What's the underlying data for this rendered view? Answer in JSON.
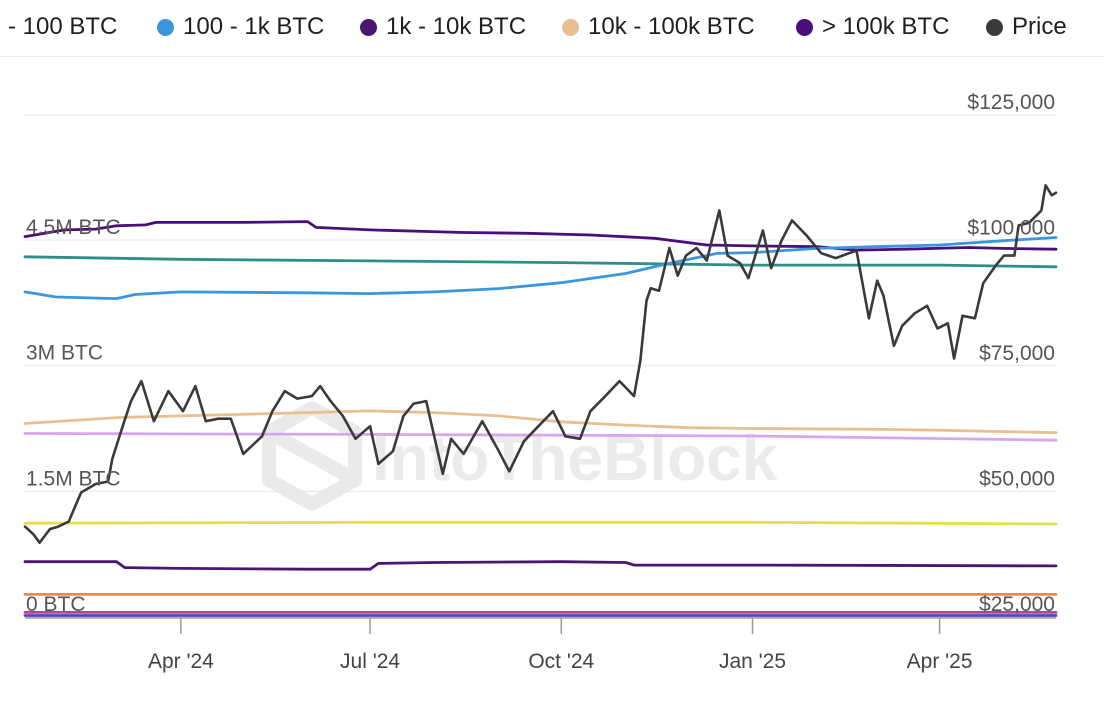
{
  "legend": {
    "items": [
      {
        "label": "- 100 BTC",
        "color": ""
      },
      {
        "label": "100 - 1k BTC",
        "color": "#3a96dd"
      },
      {
        "label": "1k - 10k BTC",
        "color": "#4a1670"
      },
      {
        "label": "10k - 100k BTC",
        "color": "#e8bf92"
      },
      {
        "label": "> 100k BTC",
        "color": "#4a0f78"
      },
      {
        "label": "Price",
        "color": "#3a3a3a"
      }
    ]
  },
  "watermark": "IntoTheBlock",
  "chart_data": {
    "type": "line",
    "x_range": [
      "2024-01-17",
      "2025-05-27"
    ],
    "x_ticks": [
      {
        "date": "2024-04-01",
        "label": "Apr '24"
      },
      {
        "date": "2024-07-01",
        "label": "Jul '24"
      },
      {
        "date": "2024-10-01",
        "label": "Oct '24"
      },
      {
        "date": "2025-01-01",
        "label": "Jan '25"
      },
      {
        "date": "2025-04-01",
        "label": "Apr '25"
      }
    ],
    "y_left": {
      "range": [
        0,
        5000000
      ],
      "ticks": [
        0,
        1500000,
        3000000,
        4500000
      ],
      "tick_labels": [
        "0 BTC",
        "1.5M BTC",
        "3M BTC",
        "4.5M BTC"
      ]
    },
    "y_right": {
      "range": [
        25000,
        125000
      ],
      "ticks": [
        25000,
        50000,
        75000,
        100000,
        125000
      ],
      "tick_labels": [
        "$25,000",
        "$50,000",
        "$75,000",
        "$100,000",
        "$125,000"
      ]
    },
    "grid": true,
    "legend_position": "top",
    "series": [
      {
        "name": "> 100k BTC",
        "axis": "left",
        "color": "#4a0f78",
        "points": [
          [
            "2024-01-17",
            4540000
          ],
          [
            "2024-02-05",
            4620000
          ],
          [
            "2024-02-20",
            4630000
          ],
          [
            "2024-03-01",
            4670000
          ],
          [
            "2024-03-15",
            4680000
          ],
          [
            "2024-03-20",
            4710000
          ],
          [
            "2024-05-01",
            4710000
          ],
          [
            "2024-06-01",
            4720000
          ],
          [
            "2024-06-05",
            4650000
          ],
          [
            "2024-07-01",
            4620000
          ],
          [
            "2024-08-15",
            4590000
          ],
          [
            "2024-09-15",
            4580000
          ],
          [
            "2024-10-15",
            4560000
          ],
          [
            "2024-11-15",
            4520000
          ],
          [
            "2024-12-10",
            4440000
          ],
          [
            "2025-01-01",
            4430000
          ],
          [
            "2025-02-01",
            4420000
          ],
          [
            "2025-02-20",
            4380000
          ],
          [
            "2025-03-15",
            4390000
          ],
          [
            "2025-04-15",
            4410000
          ],
          [
            "2025-05-01",
            4400000
          ],
          [
            "2025-05-27",
            4390000
          ]
        ]
      },
      {
        "name": "",
        "axis": "left",
        "color": "#2f8e8a",
        "points": [
          [
            "2024-01-17",
            4300000
          ],
          [
            "2024-04-01",
            4270000
          ],
          [
            "2024-07-01",
            4250000
          ],
          [
            "2024-10-01",
            4230000
          ],
          [
            "2025-01-01",
            4200000
          ],
          [
            "2025-04-01",
            4200000
          ],
          [
            "2025-05-27",
            4180000
          ]
        ]
      },
      {
        "name": "100 - 1k BTC",
        "axis": "left",
        "color": "#3a96dd",
        "points": [
          [
            "2024-01-17",
            3880000
          ],
          [
            "2024-02-01",
            3820000
          ],
          [
            "2024-03-01",
            3800000
          ],
          [
            "2024-03-10",
            3850000
          ],
          [
            "2024-04-01",
            3880000
          ],
          [
            "2024-06-01",
            3870000
          ],
          [
            "2024-07-01",
            3860000
          ],
          [
            "2024-08-01",
            3880000
          ],
          [
            "2024-09-01",
            3920000
          ],
          [
            "2024-10-01",
            3990000
          ],
          [
            "2024-10-15",
            4040000
          ],
          [
            "2024-11-01",
            4100000
          ],
          [
            "2024-11-20",
            4210000
          ],
          [
            "2024-12-15",
            4340000
          ],
          [
            "2025-01-01",
            4350000
          ],
          [
            "2025-02-01",
            4400000
          ],
          [
            "2025-03-01",
            4420000
          ],
          [
            "2025-04-01",
            4440000
          ],
          [
            "2025-05-01",
            4490000
          ],
          [
            "2025-05-27",
            4530000
          ]
        ]
      },
      {
        "name": "10k - 100k BTC",
        "axis": "left",
        "color": "#e8bf92",
        "points": [
          [
            "2024-01-17",
            2310000
          ],
          [
            "2024-03-01",
            2380000
          ],
          [
            "2024-04-01",
            2400000
          ],
          [
            "2024-06-01",
            2440000
          ],
          [
            "2024-07-01",
            2460000
          ],
          [
            "2024-08-01",
            2440000
          ],
          [
            "2024-09-01",
            2400000
          ],
          [
            "2024-10-01",
            2330000
          ],
          [
            "2024-11-01",
            2290000
          ],
          [
            "2024-12-01",
            2260000
          ],
          [
            "2025-01-01",
            2250000
          ],
          [
            "2025-03-01",
            2240000
          ],
          [
            "2025-04-01",
            2230000
          ],
          [
            "2025-05-27",
            2200000
          ]
        ]
      },
      {
        "name": "",
        "axis": "left",
        "color": "#d9a5ee",
        "points": [
          [
            "2024-01-17",
            2190000
          ],
          [
            "2024-07-01",
            2180000
          ],
          [
            "2025-01-01",
            2160000
          ],
          [
            "2025-05-27",
            2110000
          ]
        ]
      },
      {
        "name": "",
        "axis": "left",
        "color": "#e5df4e",
        "points": [
          [
            "2024-01-17",
            1120000
          ],
          [
            "2024-07-01",
            1130000
          ],
          [
            "2025-01-01",
            1130000
          ],
          [
            "2025-05-27",
            1110000
          ]
        ]
      },
      {
        "name": "1k - 10k BTC",
        "axis": "left",
        "color": "#4a1670",
        "points": [
          [
            "2024-01-17",
            660000
          ],
          [
            "2024-03-01",
            660000
          ],
          [
            "2024-03-05",
            590000
          ],
          [
            "2024-04-01",
            580000
          ],
          [
            "2024-06-01",
            570000
          ],
          [
            "2024-07-01",
            570000
          ],
          [
            "2024-07-05",
            640000
          ],
          [
            "2024-08-01",
            650000
          ],
          [
            "2024-10-01",
            660000
          ],
          [
            "2024-11-01",
            650000
          ],
          [
            "2024-11-05",
            620000
          ],
          [
            "2025-01-01",
            620000
          ],
          [
            "2025-05-27",
            610000
          ]
        ]
      },
      {
        "name": "",
        "axis": "left",
        "color": "#e58d4e",
        "points": [
          [
            "2024-01-17",
            270000
          ],
          [
            "2025-05-27",
            270000
          ]
        ]
      },
      {
        "name": "",
        "axis": "left",
        "color": "#c83c8c",
        "points": [
          [
            "2024-01-17",
            55000
          ],
          [
            "2025-05-27",
            55000
          ]
        ]
      },
      {
        "name": "",
        "axis": "left",
        "color": "#5b3ec9",
        "points": [
          [
            "2024-01-17",
            18000
          ],
          [
            "2025-05-27",
            18000
          ]
        ]
      },
      {
        "name": "Price",
        "axis": "right",
        "color": "#3a3a3a",
        "points": [
          [
            "2024-01-17",
            43000
          ],
          [
            "2024-01-21",
            41500
          ],
          [
            "2024-01-24",
            39800
          ],
          [
            "2024-01-29",
            42500
          ],
          [
            "2024-02-02",
            43000
          ],
          [
            "2024-02-07",
            44000
          ],
          [
            "2024-02-13",
            49800
          ],
          [
            "2024-02-20",
            51500
          ],
          [
            "2024-02-26",
            52000
          ],
          [
            "2024-02-28",
            56500
          ],
          [
            "2024-03-04",
            63000
          ],
          [
            "2024-03-08",
            68000
          ],
          [
            "2024-03-13",
            72000
          ],
          [
            "2024-03-19",
            64000
          ],
          [
            "2024-03-26",
            70000
          ],
          [
            "2024-04-02",
            66000
          ],
          [
            "2024-04-08",
            71000
          ],
          [
            "2024-04-13",
            64000
          ],
          [
            "2024-04-19",
            64500
          ],
          [
            "2024-04-25",
            64500
          ],
          [
            "2024-05-01",
            57500
          ],
          [
            "2024-05-10",
            61000
          ],
          [
            "2024-05-15",
            66000
          ],
          [
            "2024-05-21",
            70000
          ],
          [
            "2024-05-27",
            68500
          ],
          [
            "2024-06-03",
            69000
          ],
          [
            "2024-06-07",
            71000
          ],
          [
            "2024-06-12",
            68000
          ],
          [
            "2024-06-18",
            65000
          ],
          [
            "2024-06-24",
            60500
          ],
          [
            "2024-07-01",
            63000
          ],
          [
            "2024-07-05",
            55500
          ],
          [
            "2024-07-12",
            58000
          ],
          [
            "2024-07-17",
            65000
          ],
          [
            "2024-07-22",
            67500
          ],
          [
            "2024-07-28",
            68000
          ],
          [
            "2024-08-05",
            53500
          ],
          [
            "2024-08-09",
            60500
          ],
          [
            "2024-08-15",
            57500
          ],
          [
            "2024-08-24",
            64000
          ],
          [
            "2024-09-01",
            58000
          ],
          [
            "2024-09-06",
            54000
          ],
          [
            "2024-09-13",
            60000
          ],
          [
            "2024-09-20",
            63000
          ],
          [
            "2024-09-27",
            66000
          ],
          [
            "2024-10-03",
            61000
          ],
          [
            "2024-10-10",
            60500
          ],
          [
            "2024-10-15",
            66000
          ],
          [
            "2024-10-21",
            68500
          ],
          [
            "2024-10-29",
            72000
          ],
          [
            "2024-11-05",
            69000
          ],
          [
            "2024-11-08",
            76000
          ],
          [
            "2024-11-11",
            88000
          ],
          [
            "2024-11-13",
            90500
          ],
          [
            "2024-11-17",
            90000
          ],
          [
            "2024-11-22",
            98500
          ],
          [
            "2024-11-26",
            93000
          ],
          [
            "2024-11-30",
            97000
          ],
          [
            "2024-12-05",
            98500
          ],
          [
            "2024-12-10",
            96000
          ],
          [
            "2024-12-16",
            106000
          ],
          [
            "2024-12-20",
            97000
          ],
          [
            "2024-12-26",
            95500
          ],
          [
            "2024-12-30",
            92500
          ],
          [
            "2025-01-06",
            102000
          ],
          [
            "2025-01-10",
            94500
          ],
          [
            "2025-01-15",
            100000
          ],
          [
            "2025-01-20",
            104000
          ],
          [
            "2025-01-27",
            101000
          ],
          [
            "2025-02-03",
            97500
          ],
          [
            "2025-02-10",
            96500
          ],
          [
            "2025-02-20",
            98000
          ],
          [
            "2025-02-26",
            84500
          ],
          [
            "2025-03-02",
            92000
          ],
          [
            "2025-03-05",
            89000
          ],
          [
            "2025-03-10",
            79000
          ],
          [
            "2025-03-14",
            83000
          ],
          [
            "2025-03-20",
            85500
          ],
          [
            "2025-03-26",
            87000
          ],
          [
            "2025-03-31",
            82500
          ],
          [
            "2025-04-05",
            83500
          ],
          [
            "2025-04-08",
            76500
          ],
          [
            "2025-04-12",
            85000
          ],
          [
            "2025-04-18",
            84500
          ],
          [
            "2025-04-22",
            91500
          ],
          [
            "2025-04-28",
            95000
          ],
          [
            "2025-05-02",
            97000
          ],
          [
            "2025-05-07",
            97000
          ],
          [
            "2025-05-09",
            103000
          ],
          [
            "2025-05-14",
            103500
          ],
          [
            "2025-05-20",
            106000
          ],
          [
            "2025-05-22",
            111000
          ],
          [
            "2025-05-25",
            109000
          ],
          [
            "2025-05-27",
            109500
          ]
        ]
      }
    ]
  }
}
